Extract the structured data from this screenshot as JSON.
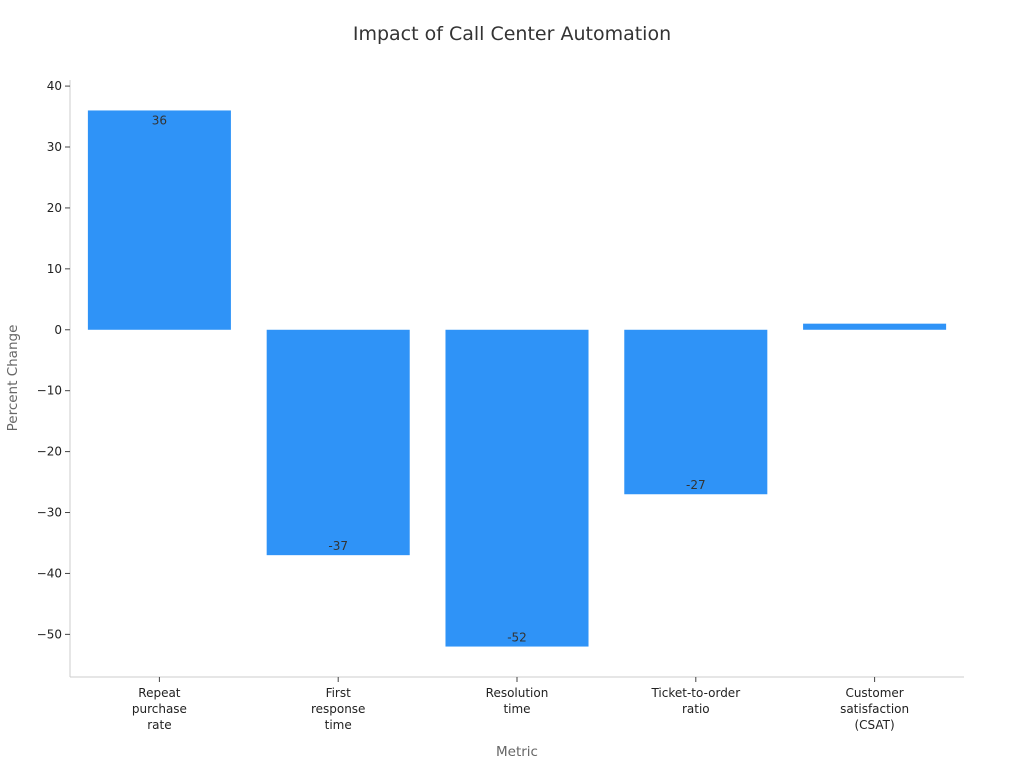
{
  "chart_data": {
    "type": "bar",
    "title": "Impact of Call Center Automation",
    "xlabel": "Metric",
    "ylabel": "Percent Change",
    "categories": [
      [
        "Repeat",
        "purchase",
        "rate"
      ],
      [
        "First",
        "response",
        "time"
      ],
      [
        "Resolution",
        "time"
      ],
      [
        "Ticket-to-order",
        "ratio"
      ],
      [
        "Customer",
        "satisfaction",
        "(CSAT)"
      ]
    ],
    "values": [
      36,
      -37,
      -52,
      -27,
      1
    ],
    "data_labels": [
      "36",
      "-37",
      "-52",
      "-27",
      ""
    ],
    "ylim": [
      -57,
      41
    ],
    "yticks": [
      40,
      30,
      20,
      10,
      0,
      -10,
      -20,
      -30,
      -40,
      -50
    ],
    "ytick_labels": [
      "40",
      "30",
      "20",
      "10",
      "0",
      "−10",
      "−20",
      "−30",
      "−40",
      "−50"
    ],
    "grid": false,
    "legend": "none",
    "bar_color": "#2f93f7",
    "axis_color": "#cccccc"
  }
}
